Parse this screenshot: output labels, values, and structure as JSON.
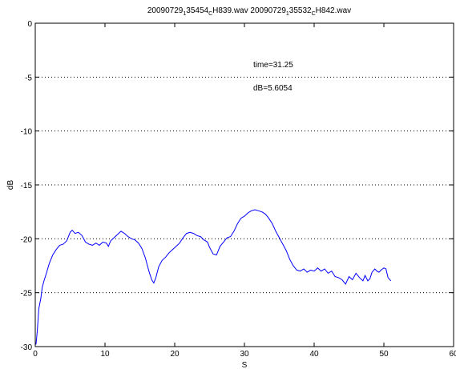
{
  "chart_data": {
    "type": "line",
    "title_parts": {
      "a1": "20090729",
      "a_sub1": "1",
      "a2": "35454",
      "a_sub2": "C",
      "a3": "H839.wav 20090729",
      "a_sub3": "1",
      "a4": "35532",
      "a_sub4": "C",
      "a5": "H842.wav"
    },
    "xlabel": "S",
    "ylabel": "dB",
    "xlim": [
      0,
      60
    ],
    "ylim": [
      -30,
      0
    ],
    "x_ticks": [
      "0",
      "10",
      "20",
      "30",
      "40",
      "50",
      "60"
    ],
    "y_ticks": [
      "0",
      "-5",
      "-10",
      "-15",
      "-20",
      "-25",
      "-30"
    ],
    "grid": "horizontal dotted",
    "annotations": [
      "time=31.25",
      "dB=5.6054"
    ],
    "series": [
      {
        "color": "#0000ff",
        "points": [
          [
            0.1,
            -29.8
          ],
          [
            0.3,
            -28.5
          ],
          [
            0.5,
            -26.5
          ],
          [
            0.8,
            -25.5
          ],
          [
            1.0,
            -24.5
          ],
          [
            1.3,
            -23.8
          ],
          [
            1.6,
            -23.2
          ],
          [
            2.0,
            -22.3
          ],
          [
            2.5,
            -21.5
          ],
          [
            3.0,
            -21.0
          ],
          [
            3.5,
            -20.6
          ],
          [
            4.0,
            -20.5
          ],
          [
            4.5,
            -20.2
          ],
          [
            5.0,
            -19.4
          ],
          [
            5.3,
            -19.2
          ],
          [
            5.7,
            -19.5
          ],
          [
            6.2,
            -19.4
          ],
          [
            6.7,
            -19.7
          ],
          [
            7.2,
            -20.3
          ],
          [
            7.7,
            -20.5
          ],
          [
            8.2,
            -20.6
          ],
          [
            8.7,
            -20.4
          ],
          [
            9.2,
            -20.6
          ],
          [
            9.7,
            -20.3
          ],
          [
            10.2,
            -20.4
          ],
          [
            10.5,
            -20.7
          ],
          [
            10.8,
            -20.2
          ],
          [
            11.3,
            -19.9
          ],
          [
            11.8,
            -19.6
          ],
          [
            12.3,
            -19.3
          ],
          [
            12.8,
            -19.5
          ],
          [
            13.3,
            -19.8
          ],
          [
            13.8,
            -20.0
          ],
          [
            14.3,
            -20.1
          ],
          [
            14.8,
            -20.4
          ],
          [
            15.3,
            -20.9
          ],
          [
            15.8,
            -21.8
          ],
          [
            16.3,
            -23.0
          ],
          [
            16.7,
            -23.8
          ],
          [
            17.0,
            -24.1
          ],
          [
            17.3,
            -23.6
          ],
          [
            17.7,
            -22.6
          ],
          [
            18.2,
            -22.0
          ],
          [
            18.7,
            -21.7
          ],
          [
            19.2,
            -21.3
          ],
          [
            19.7,
            -21.0
          ],
          [
            20.2,
            -20.7
          ],
          [
            20.7,
            -20.4
          ],
          [
            21.2,
            -19.9
          ],
          [
            21.7,
            -19.5
          ],
          [
            22.2,
            -19.4
          ],
          [
            22.7,
            -19.5
          ],
          [
            23.2,
            -19.7
          ],
          [
            23.7,
            -19.8
          ],
          [
            24.2,
            -20.1
          ],
          [
            24.7,
            -20.3
          ],
          [
            25.0,
            -20.8
          ],
          [
            25.5,
            -21.4
          ],
          [
            26.0,
            -21.5
          ],
          [
            26.5,
            -20.7
          ],
          [
            27.0,
            -20.3
          ],
          [
            27.5,
            -19.9
          ],
          [
            28.0,
            -19.8
          ],
          [
            28.5,
            -19.3
          ],
          [
            29.0,
            -18.6
          ],
          [
            29.5,
            -18.1
          ],
          [
            30.0,
            -17.9
          ],
          [
            30.5,
            -17.6
          ],
          [
            31.0,
            -17.4
          ],
          [
            31.5,
            -17.3
          ],
          [
            32.0,
            -17.4
          ],
          [
            32.5,
            -17.5
          ],
          [
            33.0,
            -17.7
          ],
          [
            33.5,
            -18.1
          ],
          [
            34.0,
            -18.6
          ],
          [
            34.5,
            -19.3
          ],
          [
            35.0,
            -19.9
          ],
          [
            35.5,
            -20.5
          ],
          [
            36.0,
            -21.1
          ],
          [
            36.5,
            -21.9
          ],
          [
            37.0,
            -22.5
          ],
          [
            37.5,
            -22.9
          ],
          [
            38.0,
            -23.0
          ],
          [
            38.5,
            -22.8
          ],
          [
            39.0,
            -23.1
          ],
          [
            39.5,
            -22.9
          ],
          [
            40.0,
            -23.0
          ],
          [
            40.5,
            -22.7
          ],
          [
            41.0,
            -23.0
          ],
          [
            41.5,
            -22.8
          ],
          [
            42.0,
            -23.2
          ],
          [
            42.5,
            -23.0
          ],
          [
            43.0,
            -23.5
          ],
          [
            43.5,
            -23.6
          ],
          [
            44.0,
            -23.8
          ],
          [
            44.5,
            -24.2
          ],
          [
            45.0,
            -23.5
          ],
          [
            45.5,
            -23.8
          ],
          [
            46.0,
            -23.2
          ],
          [
            46.5,
            -23.6
          ],
          [
            47.0,
            -23.9
          ],
          [
            47.3,
            -23.4
          ],
          [
            47.7,
            -23.9
          ],
          [
            48.0,
            -23.7
          ],
          [
            48.3,
            -23.1
          ],
          [
            48.7,
            -22.8
          ],
          [
            49.0,
            -23.0
          ],
          [
            49.3,
            -23.1
          ],
          [
            49.6,
            -22.9
          ],
          [
            50.0,
            -22.7
          ],
          [
            50.3,
            -22.8
          ],
          [
            50.6,
            -23.6
          ],
          [
            51.0,
            -23.9
          ]
        ]
      }
    ]
  }
}
